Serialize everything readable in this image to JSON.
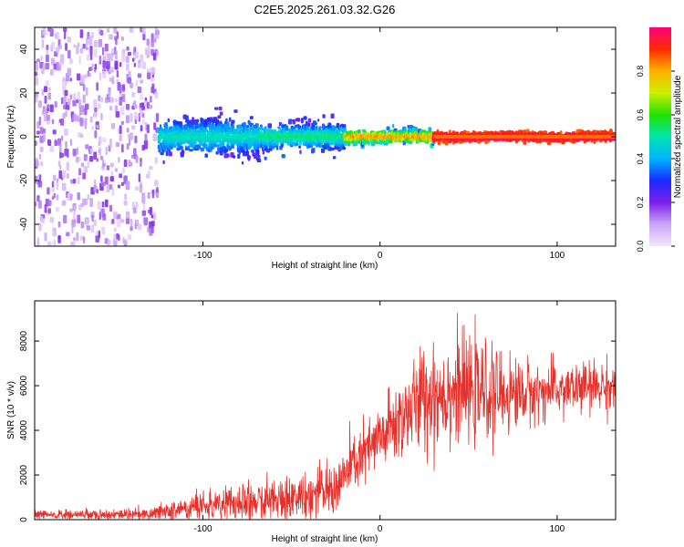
{
  "title": "C2E5.2025.261.03.32.G26",
  "chart_data": [
    {
      "type": "heatmap",
      "xlabel": "Height of straight line (km)",
      "ylabel": "Frequency (Hz)",
      "xlim": [
        -195,
        133
      ],
      "ylim": [
        -50,
        50
      ],
      "xticks": [
        -100,
        0,
        100
      ],
      "yticks": [
        -40,
        -20,
        0,
        20,
        40
      ],
      "colorbar": {
        "label": "Normalized spectral amplitude",
        "range": [
          0,
          1
        ],
        "ticks": [
          "0.0",
          "0.2",
          "0.4",
          "0.6",
          "0.8"
        ],
        "colormap": [
          "#f4e6ff",
          "#c9a6f5",
          "#7b1fe8",
          "#1a2bff",
          "#00b4ff",
          "#00e6b0",
          "#22e000",
          "#ccf000",
          "#ffb000",
          "#ff2a00",
          "#ff0080"
        ]
      },
      "regions": [
        {
          "x": [
            -195,
            -125
          ],
          "freq_spread_hz": 50,
          "amplitude": [
            0.03,
            0.2
          ],
          "description": "broadband scattered energy"
        },
        {
          "x": [
            -125,
            -68
          ],
          "freq_spread_hz": 8,
          "amplitude": [
            0.2,
            0.5
          ]
        },
        {
          "x": [
            -68,
            -20
          ],
          "freq_spread_hz": 6,
          "amplitude": [
            0.2,
            0.55
          ]
        },
        {
          "x": [
            -20,
            30
          ],
          "freq_spread_hz": 3,
          "amplitude": [
            0.3,
            0.85
          ]
        },
        {
          "x": [
            30,
            133
          ],
          "freq_spread_hz": 2,
          "amplitude": [
            0.85,
            1.0
          ]
        }
      ]
    },
    {
      "type": "line",
      "xlabel": "Height of straight line (km)",
      "ylabel": "SNR (10 * v/v)",
      "xlim": [
        -195,
        133
      ],
      "ylim": [
        0,
        9800
      ],
      "xticks": [
        -100,
        0,
        100
      ],
      "yticks": [
        0,
        2000,
        4000,
        6000,
        8000
      ],
      "color": "#e8302a",
      "trend": {
        "x": [
          -195,
          -130,
          -110,
          -90,
          -70,
          -55,
          -40,
          -25,
          -15,
          -5,
          5,
          15,
          25,
          35,
          45,
          55,
          70,
          85,
          100,
          115,
          133
        ],
        "y": [
          200,
          250,
          500,
          700,
          800,
          900,
          1100,
          1400,
          2500,
          3200,
          4000,
          4800,
          5500,
          5700,
          5800,
          5700,
          5600,
          5700,
          5800,
          5900,
          6000
        ]
      },
      "noise_amplitude": {
        "x": [
          -195,
          -130,
          -90,
          -50,
          -20,
          0,
          30,
          60,
          90,
          133
        ],
        "y": [
          150,
          200,
          600,
          700,
          900,
          1100,
          1800,
          1500,
          900,
          800
        ]
      }
    }
  ]
}
